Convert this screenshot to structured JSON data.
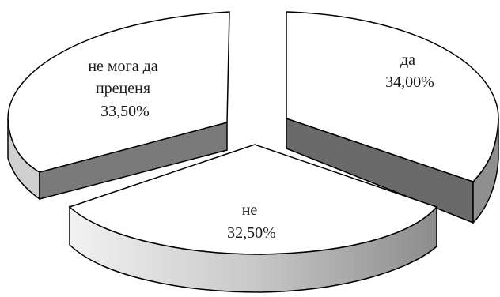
{
  "chart_data": {
    "type": "pie",
    "style": "3d-exploded",
    "slices": [
      {
        "label_lines": [
          "да"
        ],
        "value_label": "34,00%",
        "value": 34.0
      },
      {
        "label_lines": [
          "не"
        ],
        "value_label": "32,50%",
        "value": 32.5
      },
      {
        "label_lines": [
          "не мога да",
          "преценя"
        ],
        "value_label": "33,50%",
        "value": 33.5
      }
    ],
    "colors": {
      "top": "#ffffff",
      "edge": "#000000",
      "side_light": "#e0e0e0",
      "side_mid": "#9a9a9a",
      "side_dark": "#6a6a6a"
    },
    "legend": "none",
    "grid": false
  }
}
